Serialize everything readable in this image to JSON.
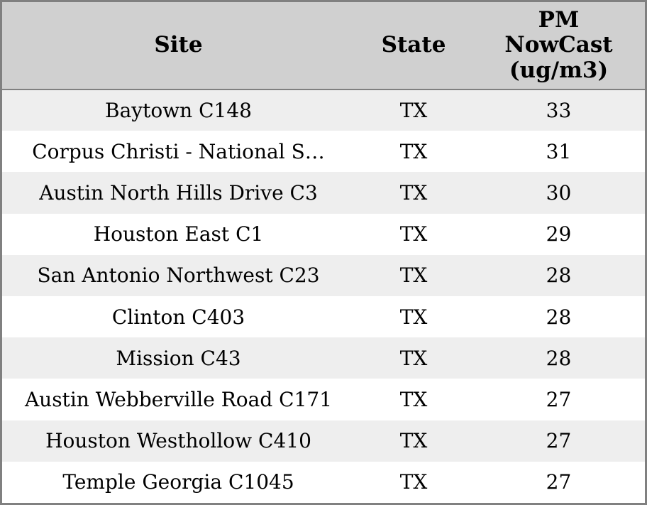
{
  "colors": {
    "header_bg": "#d0d0d0",
    "row_alt_bg": "#eeeeee",
    "row_bg": "#ffffff",
    "border": "#808080",
    "text": "#000000"
  },
  "chart_data": {
    "type": "table",
    "columns": [
      {
        "id": "site",
        "label": "Site"
      },
      {
        "id": "state",
        "label": "State"
      },
      {
        "id": "pm_nowcast",
        "label": "PM NowCast (ug/m3)"
      }
    ],
    "rows": [
      {
        "site": "Baytown C148",
        "state": "TX",
        "pm_nowcast": "33"
      },
      {
        "site": "Corpus Christi - National S…",
        "state": "TX",
        "pm_nowcast": "31"
      },
      {
        "site": "Austin North Hills Drive C3",
        "state": "TX",
        "pm_nowcast": "30"
      },
      {
        "site": "Houston East C1",
        "state": "TX",
        "pm_nowcast": "29"
      },
      {
        "site": "San Antonio Northwest C23",
        "state": "TX",
        "pm_nowcast": "28"
      },
      {
        "site": "Clinton C403",
        "state": "TX",
        "pm_nowcast": "28"
      },
      {
        "site": "Mission C43",
        "state": "TX",
        "pm_nowcast": "28"
      },
      {
        "site": "Austin Webberville Road C171",
        "state": "TX",
        "pm_nowcast": "27"
      },
      {
        "site": "Houston Westhollow C410",
        "state": "TX",
        "pm_nowcast": "27"
      },
      {
        "site": "Temple Georgia C1045",
        "state": "TX",
        "pm_nowcast": "27"
      }
    ]
  }
}
